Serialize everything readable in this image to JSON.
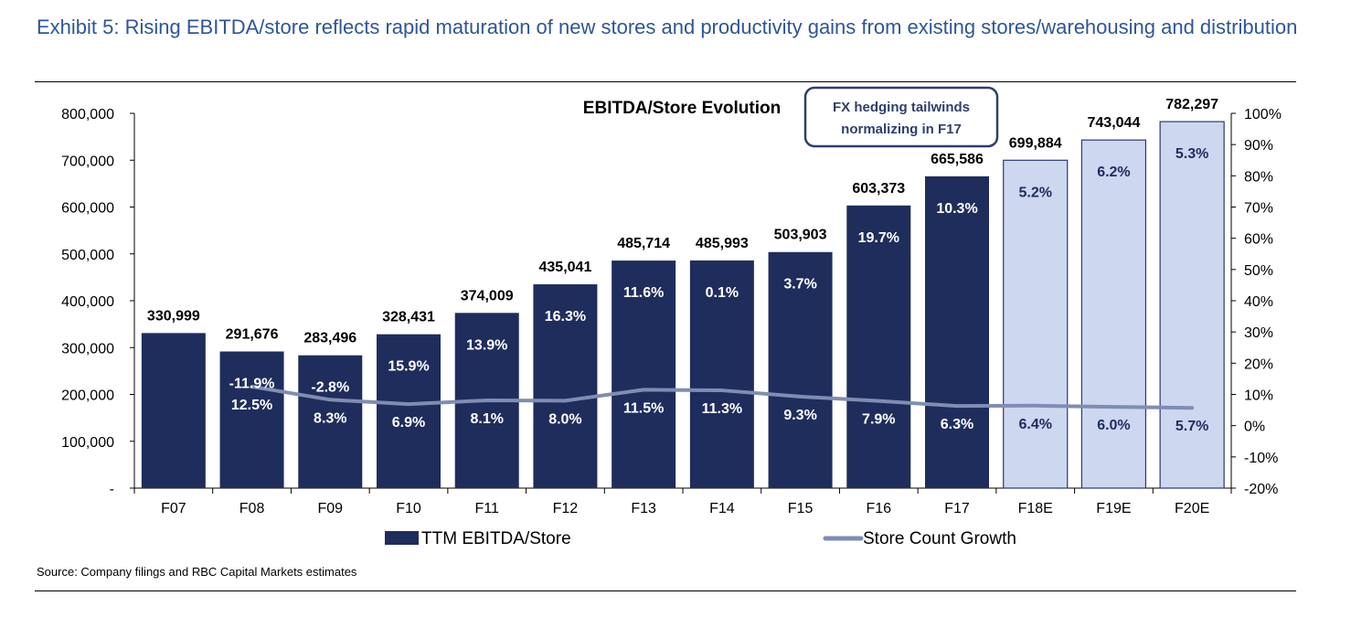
{
  "exhibit": {
    "title": "Exhibit 5: Rising EBITDA/store reflects rapid maturation of new stores and productivity gains from existing stores/warehousing and distribution",
    "source": "Source: Company filings and RBC Capital Markets estimates"
  },
  "chart_data": {
    "type": "bar",
    "title": "EBITDA/Store Evolution",
    "categories": [
      "F07",
      "F08",
      "F09",
      "F10",
      "F11",
      "F12",
      "F13",
      "F14",
      "F15",
      "F16",
      "F17",
      "F18E",
      "F19E",
      "F20E"
    ],
    "series": [
      {
        "name": "TTM EBITDA/Store",
        "type": "bar",
        "axis": "left",
        "values": [
          330999,
          291676,
          283496,
          328431,
          374009,
          435041,
          485714,
          485993,
          503903,
          603373,
          665586,
          699884,
          743044,
          782297
        ],
        "value_labels": [
          "330,999",
          "291,676",
          "283,496",
          "328,431",
          "374,009",
          "435,041",
          "485,714",
          "485,993",
          "503,903",
          "603,373",
          "665,586",
          "699,884",
          "743,044",
          "782,297"
        ],
        "growth_labels": [
          "",
          "-11.9%",
          "-2.8%",
          "15.9%",
          "13.9%",
          "16.3%",
          "11.6%",
          "0.1%",
          "3.7%",
          "19.7%",
          "10.3%",
          "5.2%",
          "6.2%",
          "5.3%"
        ],
        "estimate_from_index": 11,
        "color_actual": "#1f2d5c",
        "color_estimate": "#cdd7f0"
      },
      {
        "name": "Store Count Growth",
        "type": "line",
        "axis": "right",
        "values": [
          null,
          12.5,
          8.3,
          6.9,
          8.1,
          8.0,
          11.5,
          11.3,
          9.3,
          7.9,
          6.3,
          6.4,
          6.0,
          5.7
        ],
        "labels": [
          "",
          "12.5%",
          "8.3%",
          "6.9%",
          "8.1%",
          "8.0%",
          "11.5%",
          "11.3%",
          "9.3%",
          "7.9%",
          "6.3%",
          "6.4%",
          "6.0%",
          "5.7%"
        ],
        "color": "#7f8db3"
      }
    ],
    "y_left": {
      "min": 0,
      "max": 800000,
      "ticks": [
        0,
        100000,
        200000,
        300000,
        400000,
        500000,
        600000,
        700000,
        800000
      ],
      "tick_labels": [
        "-",
        "100,000",
        "200,000",
        "300,000",
        "400,000",
        "500,000",
        "600,000",
        "700,000",
        "800,000"
      ]
    },
    "y_right": {
      "min": -20,
      "max": 100,
      "ticks": [
        -20,
        -10,
        0,
        10,
        20,
        30,
        40,
        50,
        60,
        70,
        80,
        90,
        100
      ],
      "tick_labels": [
        "-20%",
        "-10%",
        "0%",
        "10%",
        "20%",
        "30%",
        "40%",
        "50%",
        "60%",
        "70%",
        "80%",
        "90%",
        "100%"
      ]
    },
    "annotation": {
      "lines": [
        "FX hedging tailwinds",
        "normalizing in F17"
      ]
    },
    "legend": {
      "position": "bottom",
      "entries": [
        "TTM EBITDA/Store",
        "Store Count Growth"
      ]
    },
    "grid": false
  }
}
